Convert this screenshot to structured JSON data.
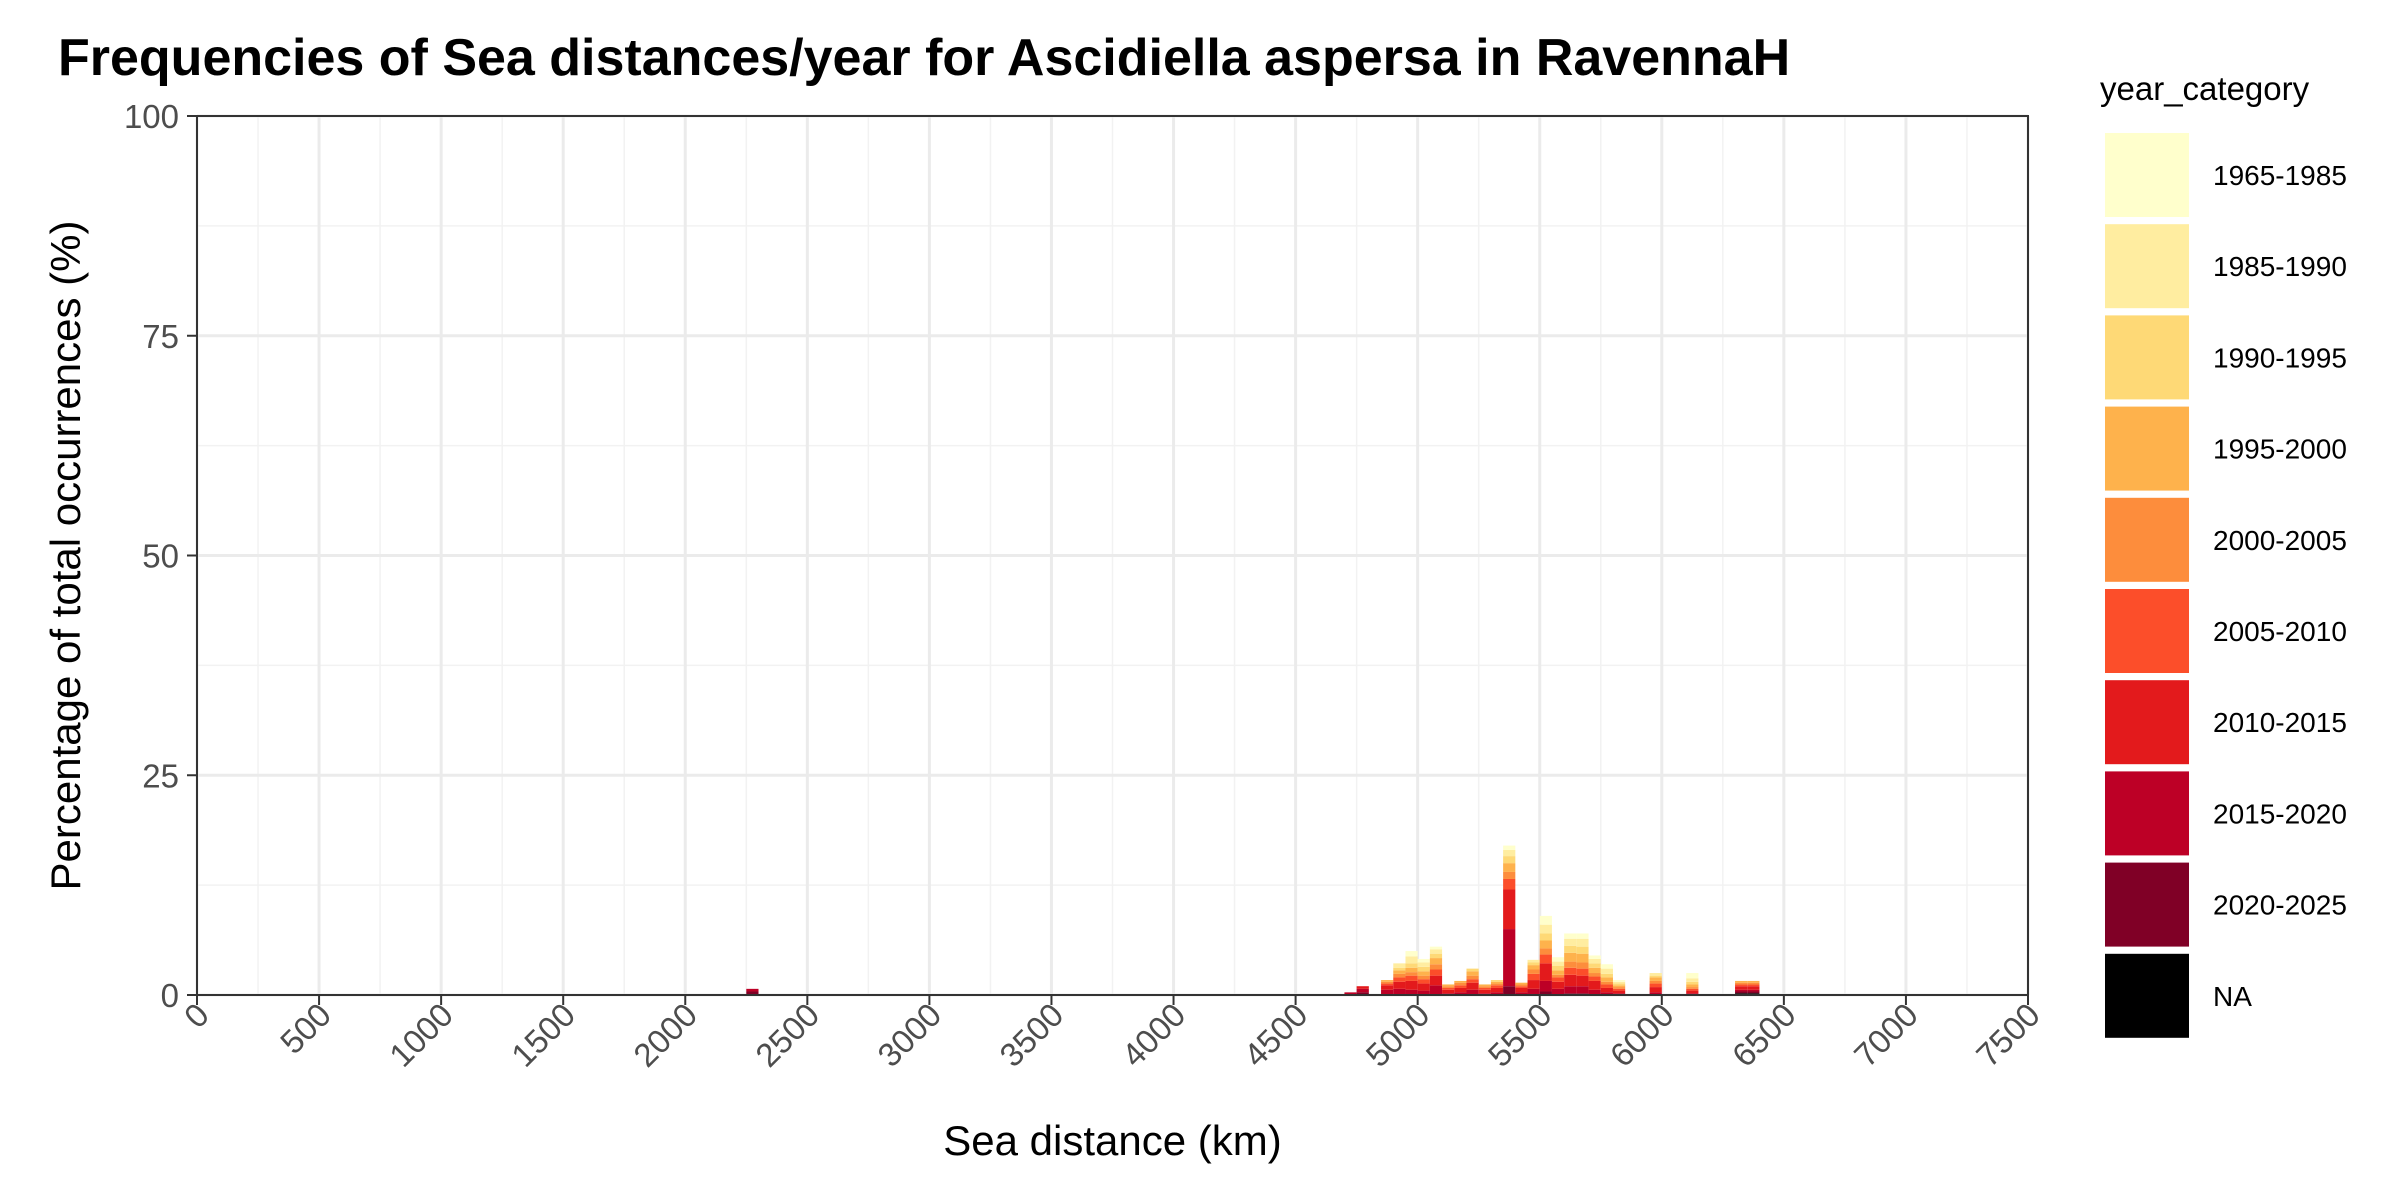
{
  "chart_data": {
    "type": "bar",
    "stacked": true,
    "title": "Frequencies of Sea distances/year for Ascidiella aspersa in RavennaH",
    "xlabel": "Sea distance (km)",
    "ylabel": "Percentage of total occurrences (%)",
    "xlim": [
      0,
      7500
    ],
    "ylim": [
      0,
      100
    ],
    "x_ticks": [
      0,
      500,
      1000,
      1500,
      2000,
      2500,
      3000,
      3500,
      4000,
      4500,
      5000,
      5500,
      6000,
      6500,
      7000,
      7500
    ],
    "y_ticks": [
      0,
      25,
      50,
      75,
      100
    ],
    "grid": true,
    "legend": {
      "title": "year_category",
      "position": "right",
      "entries": [
        {
          "label": "1965-1985",
          "color": "#FFFFCC"
        },
        {
          "label": "1985-1990",
          "color": "#FFEDA0"
        },
        {
          "label": "1990-1995",
          "color": "#FED976"
        },
        {
          "label": "1995-2000",
          "color": "#FEB24C"
        },
        {
          "label": "2000-2005",
          "color": "#FD8D3C"
        },
        {
          "label": "2005-2010",
          "color": "#FC4E2A"
        },
        {
          "label": "2010-2015",
          "color": "#E31A1C"
        },
        {
          "label": "2015-2020",
          "color": "#BD0026"
        },
        {
          "label": "2020-2025",
          "color": "#800026"
        },
        {
          "label": "NA",
          "color": "#000000"
        }
      ]
    },
    "bin_width": 50,
    "categories": [
      "1965-1985",
      "1985-1990",
      "1990-1995",
      "1995-2000",
      "2000-2005",
      "2005-2010",
      "2010-2015",
      "2015-2020",
      "2020-2025",
      "NA"
    ],
    "bins": [
      {
        "x": 2275,
        "values": [
          0,
          0,
          0,
          0,
          0,
          0,
          0,
          0.3,
          0.4,
          0
        ]
      },
      {
        "x": 4725,
        "values": [
          0,
          0,
          0,
          0,
          0,
          0,
          0,
          0.2,
          0.1,
          0
        ]
      },
      {
        "x": 4775,
        "values": [
          0,
          0,
          0,
          0,
          0,
          0,
          0.3,
          0.4,
          0.3,
          0
        ]
      },
      {
        "x": 4875,
        "values": [
          0,
          0,
          0,
          0.2,
          0.2,
          0.2,
          0.5,
          0.5,
          0.1,
          0
        ]
      },
      {
        "x": 4925,
        "values": [
          0,
          0.5,
          0.3,
          0.4,
          0.4,
          0.5,
          0.8,
          0.6,
          0.1,
          0
        ]
      },
      {
        "x": 4975,
        "values": [
          0.6,
          0.8,
          0.5,
          0.5,
          0.4,
          0.6,
          1.0,
          0.5,
          0.1,
          0
        ]
      },
      {
        "x": 5025,
        "values": [
          0.4,
          0.5,
          0.5,
          0.5,
          0.4,
          0.5,
          0.8,
          0.5,
          0,
          0
        ]
      },
      {
        "x": 5075,
        "values": [
          0.3,
          0.5,
          0.5,
          0.7,
          0.6,
          0.7,
          1.1,
          1.0,
          0.1,
          0
        ]
      },
      {
        "x": 5125,
        "values": [
          0,
          0,
          0,
          0.2,
          0.2,
          0.2,
          0.4,
          0.2,
          0,
          0
        ]
      },
      {
        "x": 5175,
        "values": [
          0,
          0,
          0,
          0.2,
          0.3,
          0.3,
          0.5,
          0.3,
          0,
          0
        ]
      },
      {
        "x": 5225,
        "values": [
          0,
          0,
          0.3,
          0.5,
          0.4,
          0.4,
          0.8,
          0.6,
          0,
          0
        ]
      },
      {
        "x": 5275,
        "values": [
          0,
          0,
          0,
          0.2,
          0.2,
          0.2,
          0.4,
          0.2,
          0,
          0
        ]
      },
      {
        "x": 5325,
        "values": [
          0,
          0,
          0.2,
          0.2,
          0.2,
          0.3,
          0.5,
          0.3,
          0,
          0
        ]
      },
      {
        "x": 5375,
        "values": [
          0.5,
          0.7,
          0.8,
          1.0,
          0.8,
          1.2,
          4.5,
          6.5,
          1.0,
          0
        ]
      },
      {
        "x": 5425,
        "values": [
          0,
          0,
          0,
          0.2,
          0.2,
          0.2,
          0.5,
          0.3,
          0,
          0
        ]
      },
      {
        "x": 5475,
        "values": [
          0,
          0.3,
          0.3,
          0.5,
          0.5,
          0.7,
          1.0,
          0.7,
          0,
          0
        ]
      },
      {
        "x": 5525,
        "values": [
          1.0,
          1.0,
          0.8,
          0.9,
          0.7,
          1.0,
          2.0,
          1.2,
          0.4,
          0
        ]
      },
      {
        "x": 5575,
        "values": [
          0.5,
          0.5,
          0.5,
          0.5,
          0.3,
          0.5,
          0.8,
          0.6,
          0.1,
          0
        ]
      },
      {
        "x": 5625,
        "values": [
          0.6,
          0.8,
          0.8,
          1.0,
          0.7,
          0.8,
          1.3,
          0.8,
          0.2,
          0
        ]
      },
      {
        "x": 5675,
        "values": [
          0.6,
          0.9,
          0.8,
          1.0,
          0.7,
          0.8,
          1.2,
          0.8,
          0.2,
          0
        ]
      },
      {
        "x": 5725,
        "values": [
          0.4,
          0.5,
          0.5,
          0.6,
          0.4,
          0.5,
          1.0,
          0.6,
          0,
          0
        ]
      },
      {
        "x": 5775,
        "values": [
          0.5,
          0.6,
          0.4,
          0.5,
          0.3,
          0.4,
          0.5,
          0.3,
          0,
          0
        ]
      },
      {
        "x": 5825,
        "values": [
          0.2,
          0.2,
          0.2,
          0.2,
          0.2,
          0.2,
          0.3,
          0.2,
          0,
          0
        ]
      },
      {
        "x": 5975,
        "values": [
          0,
          0.3,
          0.2,
          0.4,
          0.3,
          0.4,
          0.6,
          0.3,
          0,
          0
        ]
      },
      {
        "x": 6125,
        "values": [
          0.6,
          0.4,
          0.3,
          0.3,
          0.2,
          0.2,
          0.3,
          0.2,
          0,
          0
        ]
      },
      {
        "x": 6325,
        "values": [
          0,
          0,
          0,
          0.2,
          0.2,
          0.2,
          0.4,
          0.2,
          0.2,
          0.2
        ]
      },
      {
        "x": 6375,
        "values": [
          0,
          0,
          0,
          0.2,
          0.2,
          0.2,
          0.4,
          0.2,
          0.2,
          0.2
        ]
      }
    ]
  }
}
